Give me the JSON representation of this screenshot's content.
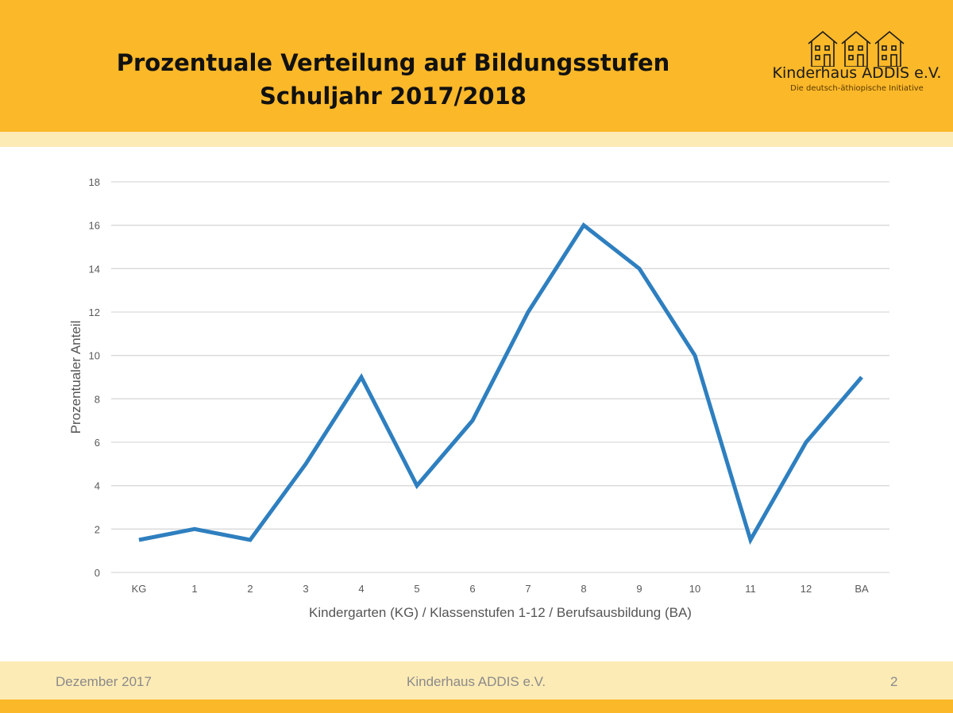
{
  "header": {
    "title_line1": "Prozentuale Verteilung auf Bildungsstufen",
    "title_line2": "Schuljahr 2017/2018"
  },
  "logo": {
    "name": "Kinderhaus ADDIS e.V.",
    "tagline": "Die deutsch-äthiopische Initiative"
  },
  "footer": {
    "date": "Dezember 2017",
    "org": "Kinderhaus ADDIS e.V.",
    "page": "2"
  },
  "colors": {
    "header": "#FBB829",
    "band": "#FDEBB6",
    "line": "#2E7FBF"
  },
  "chart_data": {
    "type": "line",
    "title": "",
    "xlabel": "Kindergarten (KG) / Klassenstufen 1-12 / Berufsausbildung (BA)",
    "ylabel": "Prozentualer Anteil",
    "categories": [
      "KG",
      "1",
      "2",
      "3",
      "4",
      "5",
      "6",
      "7",
      "8",
      "9",
      "10",
      "11",
      "12",
      "BA"
    ],
    "values": [
      1.5,
      2,
      1.5,
      5,
      9,
      4,
      7,
      12,
      16,
      14,
      10,
      1.5,
      6,
      9
    ],
    "ylim": [
      0,
      18
    ],
    "yticks": [
      0,
      2,
      4,
      6,
      8,
      10,
      12,
      14,
      16,
      18
    ],
    "grid": true,
    "legend": "none"
  }
}
